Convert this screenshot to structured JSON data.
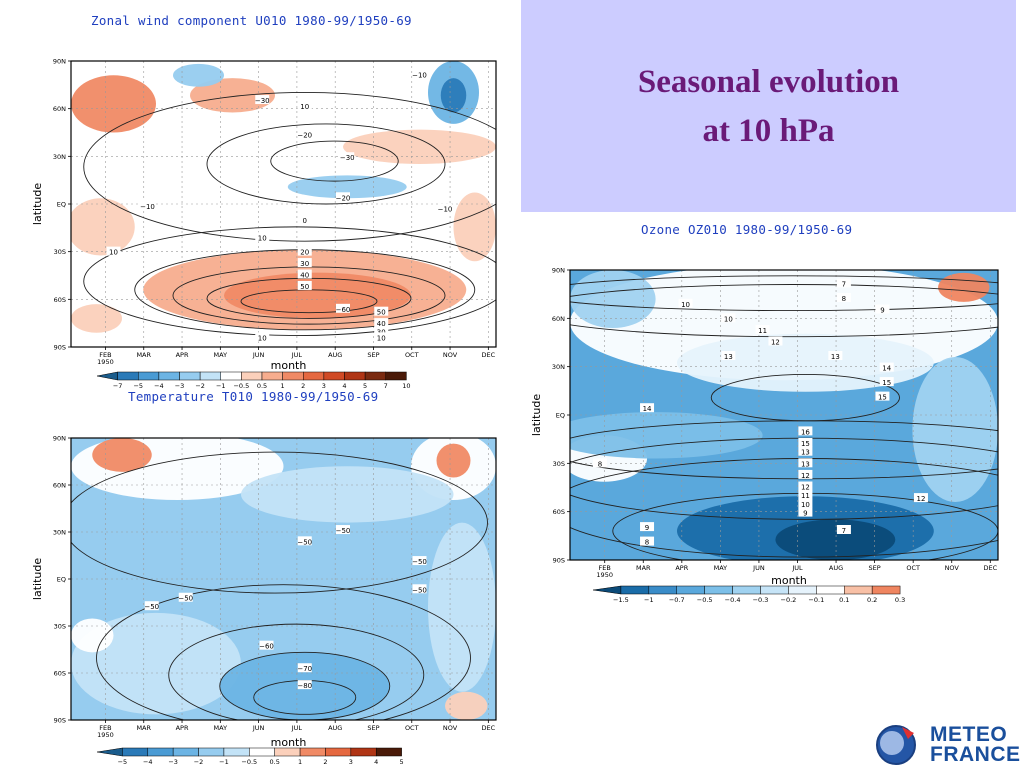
{
  "slide": {
    "title_line1": "Seasonal evolution",
    "title_line2": "at 10 hPa",
    "logo_line1": "METEO",
    "logo_line2": "FRANCE"
  },
  "chart_data": [
    {
      "type": "heatmap",
      "title": "Zonal wind component U010 1980-99/1950-69",
      "xlabel": "month",
      "ylabel": "latitude",
      "x_ticks": [
        "FEB\n1950",
        "MAR",
        "APR",
        "MAY",
        "JUN",
        "JUL",
        "AUG",
        "SEP",
        "OCT",
        "NOV",
        "DEC"
      ],
      "y_ticks": [
        "90N",
        "60N",
        "30N",
        "EQ",
        "30S",
        "60S",
        "90S"
      ],
      "colorbar": [
        -7,
        -5,
        -4,
        -3,
        -2,
        -1,
        -0.5,
        0.5,
        1,
        2,
        3,
        4,
        5,
        7,
        10
      ],
      "contour_labels": [
        "-10",
        "10",
        "-20",
        "-30",
        "-20",
        "-10",
        "-10",
        "0",
        "10",
        "20",
        "30",
        "40",
        "50",
        "-60",
        "50",
        "40",
        "30",
        "20",
        "10",
        "10",
        "-30",
        "10"
      ],
      "grid": true
    },
    {
      "type": "heatmap",
      "title": "Temperature T010 1980-99/1950-69",
      "xlabel": "month",
      "ylabel": "latitude",
      "x_ticks": [
        "FEB\n1950",
        "MAR",
        "APR",
        "MAY",
        "JUN",
        "JUL",
        "AUG",
        "SEP",
        "OCT",
        "NOV",
        "DEC"
      ],
      "y_ticks": [
        "90N",
        "60N",
        "30N",
        "EQ",
        "30S",
        "60S",
        "90S"
      ],
      "colorbar": [
        -5,
        -4,
        -3,
        -2,
        -1,
        -0.5,
        0.5,
        1,
        2,
        3,
        4,
        5
      ],
      "contour_labels": [
        "-50",
        "-50",
        "-50",
        "-50",
        "-50",
        "-50",
        "-60",
        "-70",
        "-80"
      ],
      "grid": true
    },
    {
      "type": "heatmap",
      "title": "Ozone OZ010 1980-99/1950-69",
      "xlabel": "month",
      "ylabel": "latitude",
      "x_ticks": [
        "FEB\n1950",
        "MAR",
        "APR",
        "MAY",
        "JUN",
        "JUL",
        "AUG",
        "SEP",
        "OCT",
        "NOV",
        "DEC"
      ],
      "y_ticks": [
        "90N",
        "60N",
        "30N",
        "EQ",
        "30S",
        "60S",
        "90S"
      ],
      "colorbar": [
        -1.5,
        -1,
        -0.7,
        -0.5,
        -0.4,
        -0.3,
        -0.2,
        -0.1,
        0.1,
        0.2,
        0.3
      ],
      "contour_labels": [
        "7",
        "8",
        "9",
        "10",
        "10",
        "11",
        "12",
        "13",
        "13",
        "14",
        "15",
        "14",
        "15",
        "16",
        "15",
        "13",
        "13",
        "12",
        "12",
        "11",
        "10",
        "9",
        "8",
        "7",
        "12",
        "9",
        "8"
      ],
      "grid": true
    }
  ]
}
